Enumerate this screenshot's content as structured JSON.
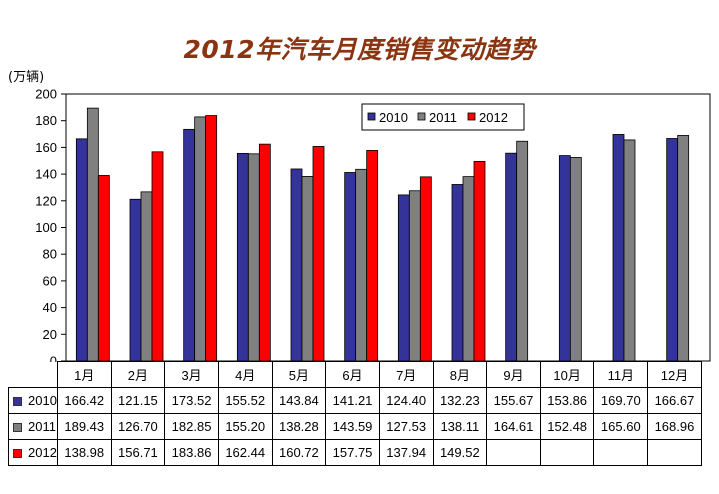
{
  "title": "2012年汽车月度销售变动趋势",
  "unit": "(万辆)",
  "chart_data": {
    "type": "bar",
    "title": "2012年汽车月度销售变动趋势",
    "ylabel": "(万辆)",
    "xlabel": "",
    "ylim": [
      0,
      200
    ],
    "yticks": [
      0,
      20,
      40,
      60,
      80,
      100,
      120,
      140,
      160,
      180,
      200
    ],
    "grid": false,
    "legend_position": "top-right",
    "categories": [
      "1月",
      "2月",
      "3月",
      "4月",
      "5月",
      "6月",
      "7月",
      "8月",
      "9月",
      "10月",
      "11月",
      "12月"
    ],
    "series": [
      {
        "name": "2010",
        "color": "#333399",
        "values": [
          166.42,
          121.15,
          173.52,
          155.52,
          143.84,
          141.21,
          124.4,
          132.23,
          155.67,
          153.86,
          169.7,
          166.67
        ]
      },
      {
        "name": "2011",
        "color": "#808080",
        "values": [
          189.43,
          126.7,
          182.85,
          155.2,
          138.28,
          143.59,
          127.53,
          138.11,
          164.61,
          152.48,
          165.6,
          168.96
        ]
      },
      {
        "name": "2012",
        "color": "#ff0000",
        "values": [
          138.98,
          156.71,
          183.86,
          162.44,
          160.72,
          157.75,
          137.94,
          149.52,
          null,
          null,
          null,
          null
        ]
      }
    ]
  },
  "table": {
    "rows": [
      {
        "label": "2010",
        "color": "#333399",
        "cells": [
          "166.42",
          "121.15",
          "173.52",
          "155.52",
          "143.84",
          "141.21",
          "124.40",
          "132.23",
          "155.67",
          "153.86",
          "169.70",
          "166.67"
        ]
      },
      {
        "label": "2011",
        "color": "#808080",
        "cells": [
          "189.43",
          "126.70",
          "182.85",
          "155.20",
          "138.28",
          "143.59",
          "127.53",
          "138.11",
          "164.61",
          "152.48",
          "165.60",
          "168.96"
        ]
      },
      {
        "label": "2012",
        "color": "#ff0000",
        "cells": [
          "138.98",
          "156.71",
          "183.86",
          "162.44",
          "160.72",
          "157.75",
          "137.94",
          "149.52",
          "",
          "",
          "",
          ""
        ]
      }
    ]
  }
}
